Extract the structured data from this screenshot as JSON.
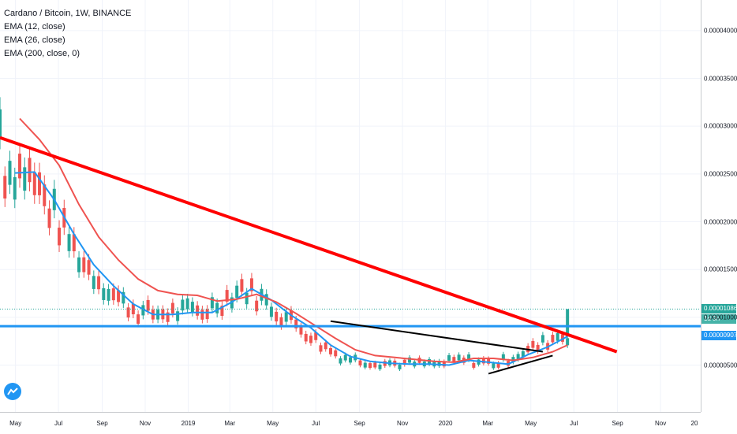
{
  "legend": {
    "title": "Cardano / Bitcoin, 1W, BINANCE",
    "ema1": "EMA (12, close)",
    "ema2": "EMA (26, close)",
    "ema3": "EMA (200, close, 0)"
  },
  "price_axis": {
    "ticks": [
      "0.00004000",
      "0.00003500",
      "0.00003000",
      "0.00002500",
      "0.00002000",
      "0.00001500",
      "0.00001000",
      "0.00000500"
    ],
    "current_price": "0.00001086",
    "countdown": "1d 9h",
    "hline_label": "0.00000907"
  },
  "time_axis": {
    "ticks": [
      "May",
      "Jul",
      "Sep",
      "Nov",
      "2019",
      "Mar",
      "May",
      "Jul",
      "Sep",
      "Nov",
      "2020",
      "Mar",
      "May",
      "Jul",
      "Sep",
      "Nov",
      "20"
    ]
  },
  "colors": {
    "up": "#26a69a",
    "down": "#ef5350",
    "ema12": "#2196f3",
    "ema26": "#ef5350",
    "trendline": "#ff0000",
    "hline": "#2196f3",
    "triangle": "#000000"
  },
  "chart_data": {
    "type": "line",
    "symbol": "Cardano / Bitcoin",
    "interval": "1W",
    "exchange": "BINANCE",
    "y_range": [
      1e-07,
      4.32e-05
    ],
    "x_range": [
      "2018-04-09",
      "2020-12-28"
    ],
    "grid": true,
    "legend_position": "top-left",
    "series": [
      {
        "name": "EMA (12, close)",
        "color": "#2196f3",
        "x": [
          "2018-04-30",
          "2018-05-28",
          "2018-06-25",
          "2018-07-23",
          "2018-08-20",
          "2018-09-17",
          "2018-10-15",
          "2018-11-12",
          "2018-12-10",
          "2019-01-07",
          "2019-02-04",
          "2019-03-04",
          "2019-04-01",
          "2019-04-29",
          "2019-05-27",
          "2019-06-24",
          "2019-07-22",
          "2019-08-19",
          "2019-09-16",
          "2019-10-14",
          "2019-11-11",
          "2019-12-09",
          "2020-01-06",
          "2020-02-03",
          "2020-03-02",
          "2020-03-30",
          "2020-04-27",
          "2020-05-25",
          "2020-06-22"
        ],
        "values": [
          2.51e-05,
          2.52e-05,
          2.23e-05,
          1.87e-05,
          1.55e-05,
          1.33e-05,
          1.14e-05,
          1.03e-05,
          1.03e-05,
          1.05e-05,
          1.05e-05,
          1.16e-05,
          1.3e-05,
          1.18e-05,
          1.02e-05,
          8.9e-06,
          7.1e-06,
          5.9e-06,
          5.4e-06,
          5.2e-06,
          5.1e-06,
          5.1e-06,
          5e-06,
          5.5e-06,
          5.3e-06,
          5.1e-06,
          6.1e-06,
          6.9e-06,
          8e-06
        ]
      },
      {
        "name": "EMA (26, close)",
        "color": "#ef5350",
        "x": [
          "2018-05-07",
          "2018-06-04",
          "2018-07-02",
          "2018-07-30",
          "2018-08-27",
          "2018-09-24",
          "2018-10-22",
          "2018-11-19",
          "2018-12-17",
          "2019-01-14",
          "2019-02-11",
          "2019-03-11",
          "2019-04-08",
          "2019-05-06",
          "2019-06-03",
          "2019-07-01",
          "2019-07-29",
          "2019-08-26",
          "2019-09-23",
          "2019-10-21",
          "2019-11-18",
          "2019-12-16",
          "2020-01-13",
          "2020-02-10",
          "2020-03-09",
          "2020-04-06",
          "2020-05-04",
          "2020-06-01",
          "2020-06-22"
        ],
        "values": [
          3.08e-05,
          2.86e-05,
          2.59e-05,
          2.18e-05,
          1.84e-05,
          1.6e-05,
          1.4e-05,
          1.28e-05,
          1.24e-05,
          1.23e-05,
          1.17e-05,
          1.19e-05,
          1.24e-05,
          1.16e-05,
          1.04e-05,
          9.1e-06,
          7.8e-06,
          6.6e-06,
          6e-06,
          5.8e-06,
          5.6e-06,
          5.4e-06,
          5.3e-06,
          5.7e-06,
          5.7e-06,
          5.5e-06,
          5.8e-06,
          6.4e-06,
          7.1e-06
        ]
      }
    ],
    "annotations": {
      "trendline": {
        "from": [
          "2018-04-09",
          2.88e-05
        ],
        "to": [
          "2020-08-31",
          6.4e-06
        ]
      },
      "support_line": 9.07e-06,
      "triangle_upper": {
        "from": [
          "2019-07-22",
          9.6e-06
        ],
        "to": [
          "2020-05-18",
          6.4e-06
        ]
      },
      "triangle_lower": {
        "from": [
          "2020-03-02",
          4.1e-06
        ],
        "to": [
          "2020-06-01",
          6e-06
        ]
      },
      "current_price": 1.086e-05
    }
  }
}
